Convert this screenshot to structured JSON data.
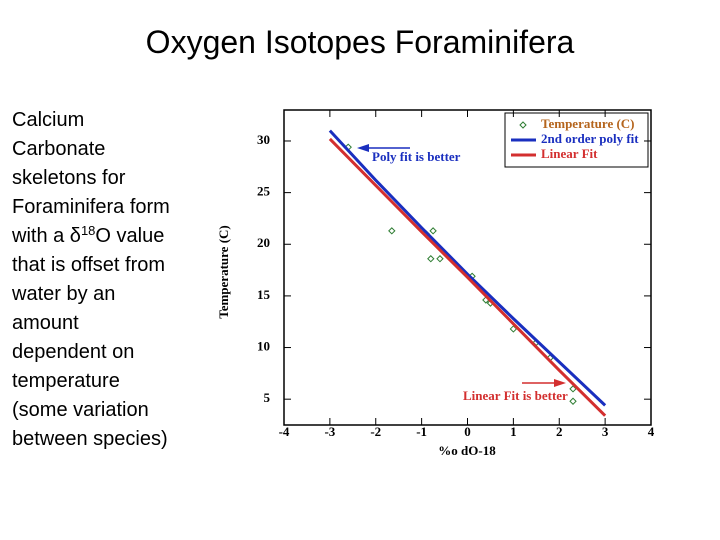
{
  "slide": {
    "title": "Oxygen Isotopes Foraminifera",
    "body": [
      "Calcium",
      "Carbonate",
      "skeletons for",
      "Foraminifera form",
      [
        "with a δ",
        "18",
        "O value"
      ],
      "that is offset from",
      "water by an",
      "amount",
      "dependent on",
      "temperature",
      "(some variation",
      "between species)"
    ]
  },
  "chart_data": {
    "type": "scatter",
    "x_label": "%o dO-18",
    "y_label": "Temperature (C)",
    "xlim": [
      -4,
      4
    ],
    "xticks": [
      -4,
      -3,
      -2,
      -1,
      0,
      1,
      2,
      3,
      4
    ],
    "ylim": [
      2.5,
      33
    ],
    "yticks": [
      5,
      10,
      15,
      20,
      25,
      30
    ],
    "annotations": [
      "Poly fit is better",
      "Linear Fit is better"
    ],
    "series": [
      {
        "name": "Temperature (C)",
        "color": "#2e7d32",
        "kind": "points",
        "x": [
          -2.6,
          -1.65,
          -1.0,
          -0.9,
          -0.75,
          -0.8,
          -0.6,
          0.1,
          0.4,
          0.5,
          1.0,
          1.5,
          1.8,
          2.3,
          2.3
        ],
        "values": [
          29.4,
          21.3,
          21.4,
          21.0,
          21.3,
          18.6,
          18.6,
          16.9,
          14.6,
          14.3,
          11.8,
          10.5,
          9.0,
          6.0,
          4.8
        ]
      },
      {
        "name": "2nd order poly fit",
        "color": "#1a2fbf",
        "kind": "line",
        "x": [
          -3,
          -2,
          -1,
          0,
          1,
          2,
          3
        ],
        "values": [
          31.0,
          26.2,
          21.6,
          17.1,
          12.8,
          8.6,
          4.4
        ]
      },
      {
        "name": "Linear Fit",
        "color": "#d32f2f",
        "kind": "line",
        "x": [
          -3,
          -2,
          -1,
          0,
          1,
          2,
          3
        ],
        "values": [
          30.2,
          25.7,
          21.2,
          16.8,
          12.3,
          7.8,
          3.4
        ]
      }
    ]
  }
}
